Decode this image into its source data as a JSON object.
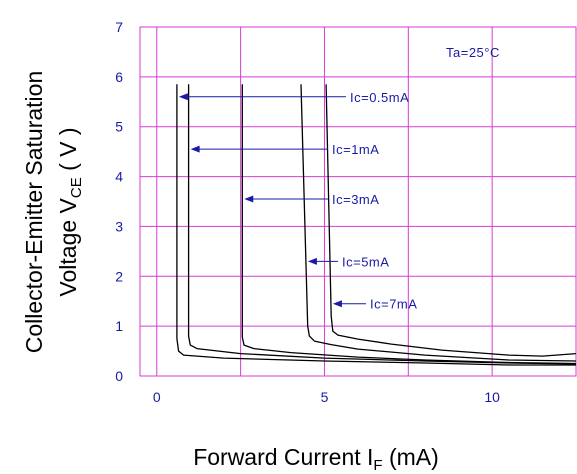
{
  "chart_data": {
    "type": "line",
    "xlabel_main": "Forward Current I",
    "xlabel_sub": "F",
    "xlabel_unit": " (mA)",
    "ylabel_line1": "Collector-Emitter Saturation",
    "ylabel_line2_main": "Voltage V",
    "ylabel_line2_sub": "CE",
    "ylabel_line2_unit": " ( V )",
    "xlim": [
      -0.5,
      12.5
    ],
    "ylim": [
      0,
      7
    ],
    "xticks": [
      {
        "v": 0,
        "label": "0"
      },
      {
        "v": 5,
        "label": "5"
      },
      {
        "v": 10,
        "label": "10"
      }
    ],
    "yticks": [
      {
        "v": 0,
        "label": "0"
      },
      {
        "v": 1,
        "label": "1"
      },
      {
        "v": 2,
        "label": "2"
      },
      {
        "v": 3,
        "label": "3"
      },
      {
        "v": 4,
        "label": "4"
      },
      {
        "v": 5,
        "label": "5"
      },
      {
        "v": 6,
        "label": "6"
      },
      {
        "v": 7,
        "label": "7"
      }
    ],
    "grid": true,
    "condition": "Ta=25°C",
    "series": [
      {
        "name": "Ic=0.5mA",
        "x": [
          0.6,
          0.6,
          0.65,
          0.8,
          2,
          5,
          8,
          10.5,
          12.5
        ],
        "y": [
          5.85,
          0.75,
          0.5,
          0.42,
          0.36,
          0.3,
          0.26,
          0.22,
          0.22
        ],
        "label_value": 5.6
      },
      {
        "name": "Ic=1mA",
        "x": [
          0.95,
          0.95,
          1.0,
          1.2,
          2.5,
          5,
          8,
          10.5,
          12.5
        ],
        "y": [
          5.85,
          0.8,
          0.62,
          0.55,
          0.45,
          0.36,
          0.3,
          0.26,
          0.24
        ],
        "label_value": 4.55
      },
      {
        "name": "Ic=3mA",
        "x": [
          2.55,
          2.55,
          2.6,
          2.9,
          4,
          6,
          8,
          10.5,
          12.5
        ],
        "y": [
          5.85,
          0.78,
          0.62,
          0.55,
          0.47,
          0.38,
          0.32,
          0.27,
          0.25
        ],
        "label_value": 3.55
      },
      {
        "name": "Ic=5mA",
        "x": [
          4.3,
          4.5,
          4.55,
          4.7,
          5.2,
          6,
          8,
          10.5,
          12.5
        ],
        "y": [
          5.85,
          1.0,
          0.8,
          0.7,
          0.63,
          0.54,
          0.42,
          0.32,
          0.3
        ],
        "label_value": 2.3
      },
      {
        "name": "Ic=7mA",
        "x": [
          5.05,
          5.2,
          5.25,
          5.4,
          6,
          7,
          8.5,
          10.5,
          11.5,
          12.5
        ],
        "y": [
          5.85,
          1.2,
          0.9,
          0.82,
          0.74,
          0.64,
          0.52,
          0.42,
          0.4,
          0.45
        ],
        "label_value": 1.45
      }
    ]
  }
}
